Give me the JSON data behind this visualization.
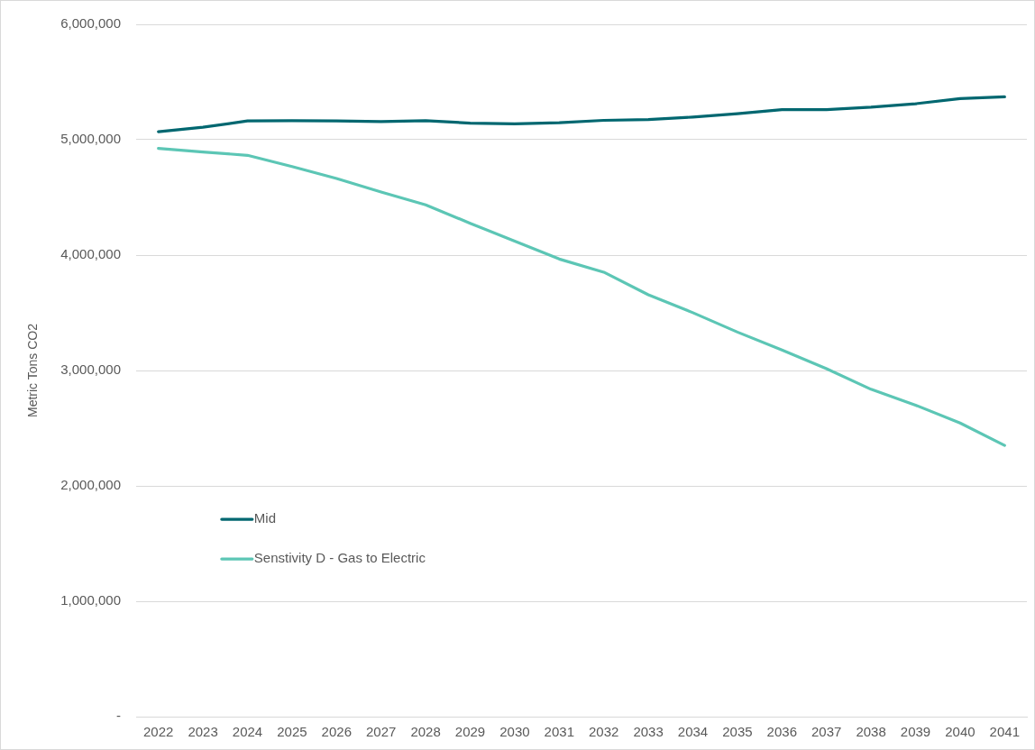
{
  "chart_data": {
    "type": "line",
    "categories": [
      "2022",
      "2023",
      "2024",
      "2025",
      "2026",
      "2027",
      "2028",
      "2029",
      "2030",
      "2031",
      "2032",
      "2033",
      "2034",
      "2035",
      "2036",
      "2037",
      "2038",
      "2039",
      "2040",
      "2041"
    ],
    "series": [
      {
        "name": "Mid",
        "color": "#006770",
        "values": [
          5070000,
          5108000,
          5163000,
          5165000,
          5163000,
          5157000,
          5165000,
          5144000,
          5137000,
          5147000,
          5168000,
          5175000,
          5196000,
          5225000,
          5261000,
          5261000,
          5282000,
          5312000,
          5357000,
          5372000
        ]
      },
      {
        "name": "Senstivity D - Gas to Electric",
        "color": "#5cc6b5",
        "values": [
          4925000,
          4894000,
          4865000,
          4767000,
          4664000,
          4547000,
          4436000,
          4276000,
          4121000,
          3966000,
          3852000,
          3656000,
          3501000,
          3333000,
          3178000,
          3016000,
          2837000,
          2700000,
          2545000,
          2351000
        ]
      }
    ],
    "ylabel": "Metric Tons CO2",
    "ylim": [
      0,
      6000000
    ],
    "yticks": [
      {
        "value": 0,
        "label": "-"
      },
      {
        "value": 1000000,
        "label": "1,000,000"
      },
      {
        "value": 2000000,
        "label": "2,000,000"
      },
      {
        "value": 3000000,
        "label": "3,000,000"
      },
      {
        "value": 4000000,
        "label": "4,000,000"
      },
      {
        "value": 5000000,
        "label": "5,000,000"
      },
      {
        "value": 6000000,
        "label": "6,000,000"
      }
    ],
    "grid": "y",
    "legend": "bottom left",
    "marker": "none"
  }
}
